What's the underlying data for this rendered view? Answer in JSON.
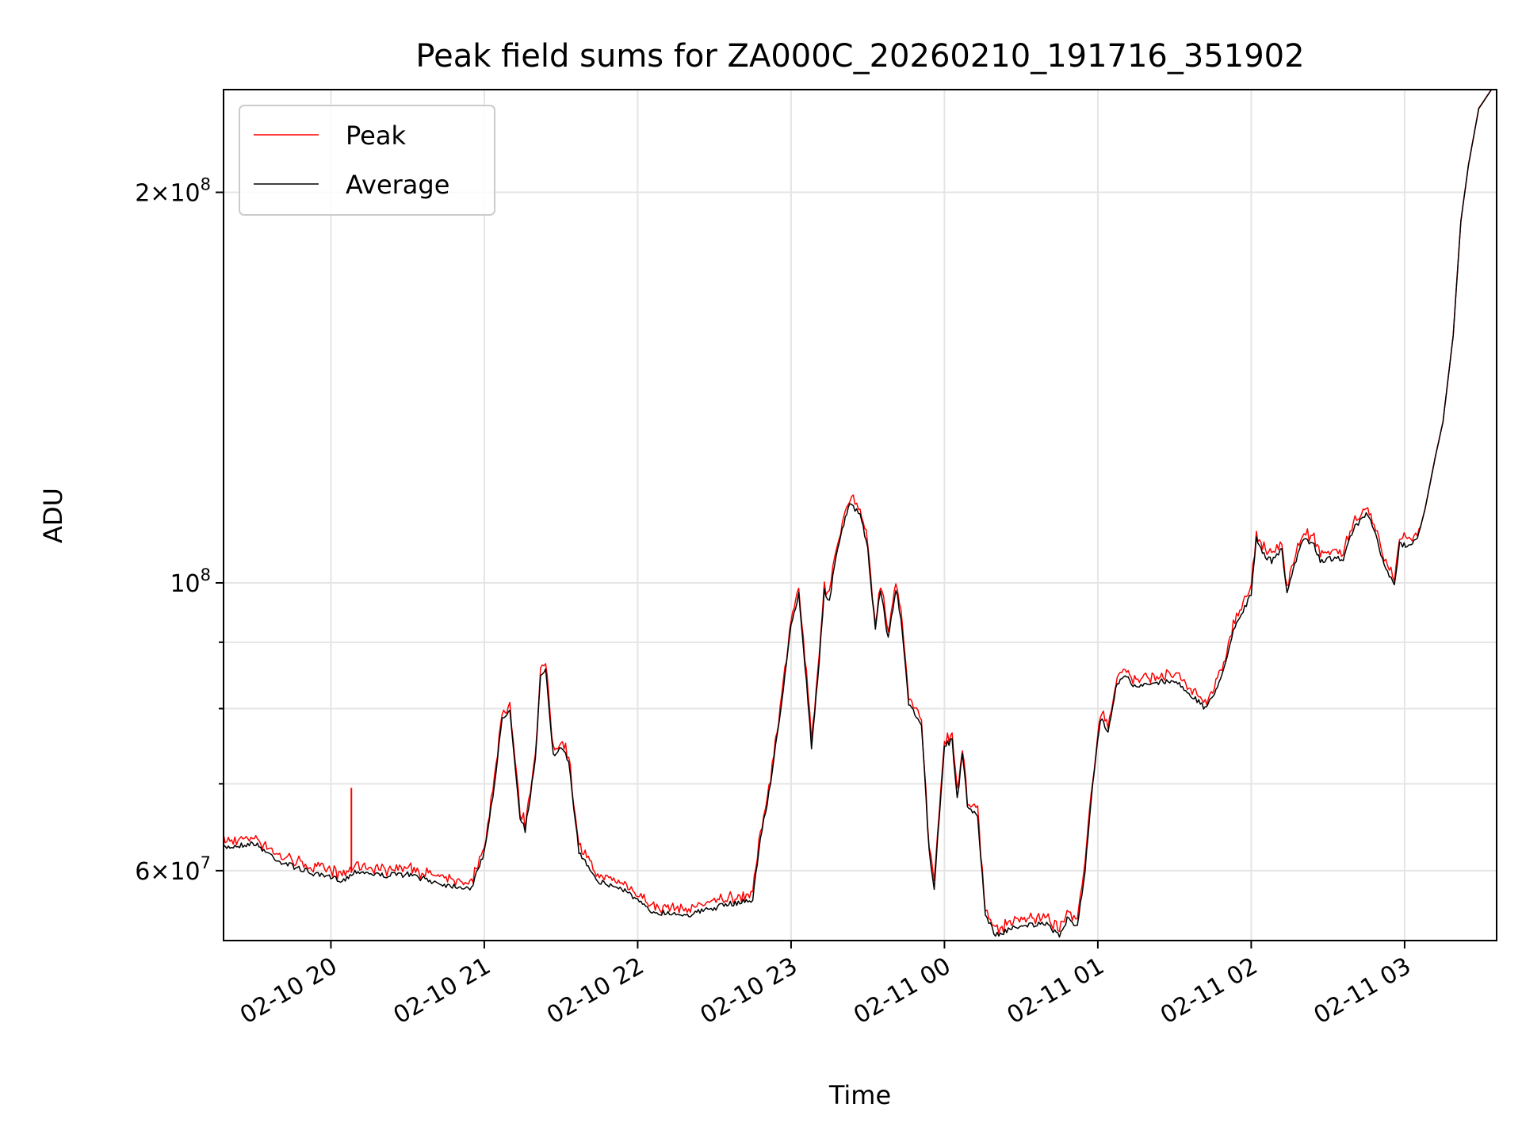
{
  "chart_data": {
    "type": "line",
    "title": "Peak field sums for ZA000C_20260210_191716_351902",
    "xlabel": "Time",
    "ylabel": "ADU",
    "y_scale": "log",
    "xlim": [
      "2026-02-10 19:18",
      "2026-02-11 03:36"
    ],
    "ylim": [
      53000000,
      240000000
    ],
    "grid": true,
    "legend_position": "upper-left",
    "x_ticks": [
      {
        "t": "2026-02-10 20:00",
        "label": "02-10 20"
      },
      {
        "t": "2026-02-10 21:00",
        "label": "02-10 21"
      },
      {
        "t": "2026-02-10 22:00",
        "label": "02-10 22"
      },
      {
        "t": "2026-02-10 23:00",
        "label": "02-10 23"
      },
      {
        "t": "2026-02-11 00:00",
        "label": "02-11 00"
      },
      {
        "t": "2026-02-11 01:00",
        "label": "02-11 01"
      },
      {
        "t": "2026-02-11 02:00",
        "label": "02-11 02"
      },
      {
        "t": "2026-02-11 03:00",
        "label": "02-11 03"
      }
    ],
    "y_ticks": [
      {
        "v": 60000000,
        "label": "6×10^7",
        "mant": "6",
        "exp": "7",
        "labeled": true
      },
      {
        "v": 70000000,
        "labeled": false
      },
      {
        "v": 80000000,
        "labeled": false
      },
      {
        "v": 90000000,
        "labeled": false
      },
      {
        "v": 100000000,
        "label": "10^8",
        "mant": "",
        "exp": "8",
        "labeled": true
      },
      {
        "v": 200000000,
        "label": "2×10^8",
        "mant": "2",
        "exp": "8",
        "labeled": true
      }
    ],
    "series": [
      {
        "name": "Average",
        "color": "#000000",
        "points": [
          [
            "2026-02-10 19:18",
            62500000
          ],
          [
            "2026-02-10 19:30",
            63000000
          ],
          [
            "2026-02-10 19:40",
            61000000
          ],
          [
            "2026-02-10 19:55",
            59500000
          ],
          [
            "2026-02-10 20:05",
            59000000
          ],
          [
            "2026-02-10 20:10",
            60000000
          ],
          [
            "2026-02-10 20:20",
            59500000
          ],
          [
            "2026-02-10 20:30",
            59600000
          ],
          [
            "2026-02-10 20:45",
            58500000
          ],
          [
            "2026-02-10 20:55",
            58200000
          ],
          [
            "2026-02-10 21:00",
            62000000
          ],
          [
            "2026-02-10 21:04",
            70000000
          ],
          [
            "2026-02-10 21:07",
            78500000
          ],
          [
            "2026-02-10 21:10",
            80000000
          ],
          [
            "2026-02-10 21:14",
            66000000
          ],
          [
            "2026-02-10 21:16",
            64500000
          ],
          [
            "2026-02-10 21:20",
            73000000
          ],
          [
            "2026-02-10 21:22",
            84500000
          ],
          [
            "2026-02-10 21:24",
            86000000
          ],
          [
            "2026-02-10 21:27",
            73500000
          ],
          [
            "2026-02-10 21:30",
            74500000
          ],
          [
            "2026-02-10 21:33",
            73000000
          ],
          [
            "2026-02-10 21:37",
            62000000
          ],
          [
            "2026-02-10 21:45",
            58800000
          ],
          [
            "2026-02-10 21:55",
            58000000
          ],
          [
            "2026-02-10 22:05",
            55800000
          ],
          [
            "2026-02-10 22:20",
            55500000
          ],
          [
            "2026-02-10 22:35",
            56500000
          ],
          [
            "2026-02-10 22:45",
            57000000
          ],
          [
            "2026-02-10 22:48",
            63500000
          ],
          [
            "2026-02-10 22:52",
            70000000
          ],
          [
            "2026-02-10 22:57",
            83000000
          ],
          [
            "2026-02-10 23:00",
            92500000
          ],
          [
            "2026-02-10 23:03",
            98000000
          ],
          [
            "2026-02-10 23:06",
            84000000
          ],
          [
            "2026-02-10 23:08",
            74800000
          ],
          [
            "2026-02-10 23:11",
            87000000
          ],
          [
            "2026-02-10 23:13",
            98500000
          ],
          [
            "2026-02-10 23:15",
            97000000
          ],
          [
            "2026-02-10 23:17",
            103000000
          ],
          [
            "2026-02-10 23:20",
            110000000
          ],
          [
            "2026-02-10 23:23",
            115000000
          ],
          [
            "2026-02-10 23:27",
            113000000
          ],
          [
            "2026-02-10 23:30",
            106000000
          ],
          [
            "2026-02-10 23:33",
            92000000
          ],
          [
            "2026-02-10 23:35",
            99000000
          ],
          [
            "2026-02-10 23:38",
            90500000
          ],
          [
            "2026-02-10 23:41",
            99000000
          ],
          [
            "2026-02-10 23:43",
            94000000
          ],
          [
            "2026-02-10 23:46",
            80500000
          ],
          [
            "2026-02-10 23:49",
            79000000
          ],
          [
            "2026-02-10 23:51",
            78000000
          ],
          [
            "2026-02-10 23:54",
            62000000
          ],
          [
            "2026-02-10 23:56",
            58300000
          ],
          [
            "2026-02-10 23:58",
            66000000
          ],
          [
            "2026-02-11 00:00",
            75000000
          ],
          [
            "2026-02-11 00:03",
            75500000
          ],
          [
            "2026-02-11 00:05",
            68000000
          ],
          [
            "2026-02-11 00:07",
            74000000
          ],
          [
            "2026-02-11 00:09",
            67500000
          ],
          [
            "2026-02-11 00:13",
            66000000
          ],
          [
            "2026-02-11 00:16",
            55500000
          ],
          [
            "2026-02-11 00:20",
            53500000
          ],
          [
            "2026-02-11 00:30",
            54500000
          ],
          [
            "2026-02-11 00:40",
            54500000
          ],
          [
            "2026-02-11 00:45",
            53500000
          ],
          [
            "2026-02-11 00:48",
            55000000
          ],
          [
            "2026-02-11 00:52",
            54500000
          ],
          [
            "2026-02-11 00:55",
            60000000
          ],
          [
            "2026-02-11 00:58",
            70000000
          ],
          [
            "2026-02-11 01:01",
            78500000
          ],
          [
            "2026-02-11 01:04",
            77000000
          ],
          [
            "2026-02-11 01:07",
            83000000
          ],
          [
            "2026-02-11 01:10",
            85000000
          ],
          [
            "2026-02-11 01:15",
            83000000
          ],
          [
            "2026-02-11 01:25",
            84000000
          ],
          [
            "2026-02-11 01:30",
            84000000
          ],
          [
            "2026-02-11 01:35",
            82500000
          ],
          [
            "2026-02-11 01:42",
            80000000
          ],
          [
            "2026-02-11 01:48",
            84000000
          ],
          [
            "2026-02-11 01:53",
            92000000
          ],
          [
            "2026-02-11 02:00",
            98000000
          ],
          [
            "2026-02-11 02:02",
            108000000
          ],
          [
            "2026-02-11 02:05",
            105000000
          ],
          [
            "2026-02-11 02:08",
            104000000
          ],
          [
            "2026-02-11 02:12",
            106000000
          ],
          [
            "2026-02-11 02:14",
            98500000
          ],
          [
            "2026-02-11 02:17",
            103000000
          ],
          [
            "2026-02-11 02:20",
            108000000
          ],
          [
            "2026-02-11 02:24",
            107500000
          ],
          [
            "2026-02-11 02:27",
            104000000
          ],
          [
            "2026-02-11 02:32",
            104500000
          ],
          [
            "2026-02-11 02:36",
            104500000
          ],
          [
            "2026-02-11 02:40",
            110000000
          ],
          [
            "2026-02-11 02:45",
            113000000
          ],
          [
            "2026-02-11 02:48",
            110000000
          ],
          [
            "2026-02-11 02:52",
            103000000
          ],
          [
            "2026-02-11 02:56",
            99500000
          ],
          [
            "2026-02-11 02:58",
            107000000
          ],
          [
            "2026-02-11 03:01",
            107000000
          ],
          [
            "2026-02-11 03:05",
            108000000
          ],
          [
            "2026-02-11 03:08",
            114000000
          ],
          [
            "2026-02-11 03:12",
            125000000
          ],
          [
            "2026-02-11 03:15",
            133000000
          ],
          [
            "2026-02-11 03:19",
            155000000
          ],
          [
            "2026-02-11 03:22",
            190000000
          ],
          [
            "2026-02-11 03:25",
            210000000
          ],
          [
            "2026-02-11 03:29",
            232000000
          ],
          [
            "2026-02-11 03:34",
            240000000
          ]
        ]
      },
      {
        "name": "Peak",
        "color": "#ff0000",
        "spikes": [
          [
            "2026-02-10 20:08",
            69500000
          ]
        ]
      }
    ]
  }
}
